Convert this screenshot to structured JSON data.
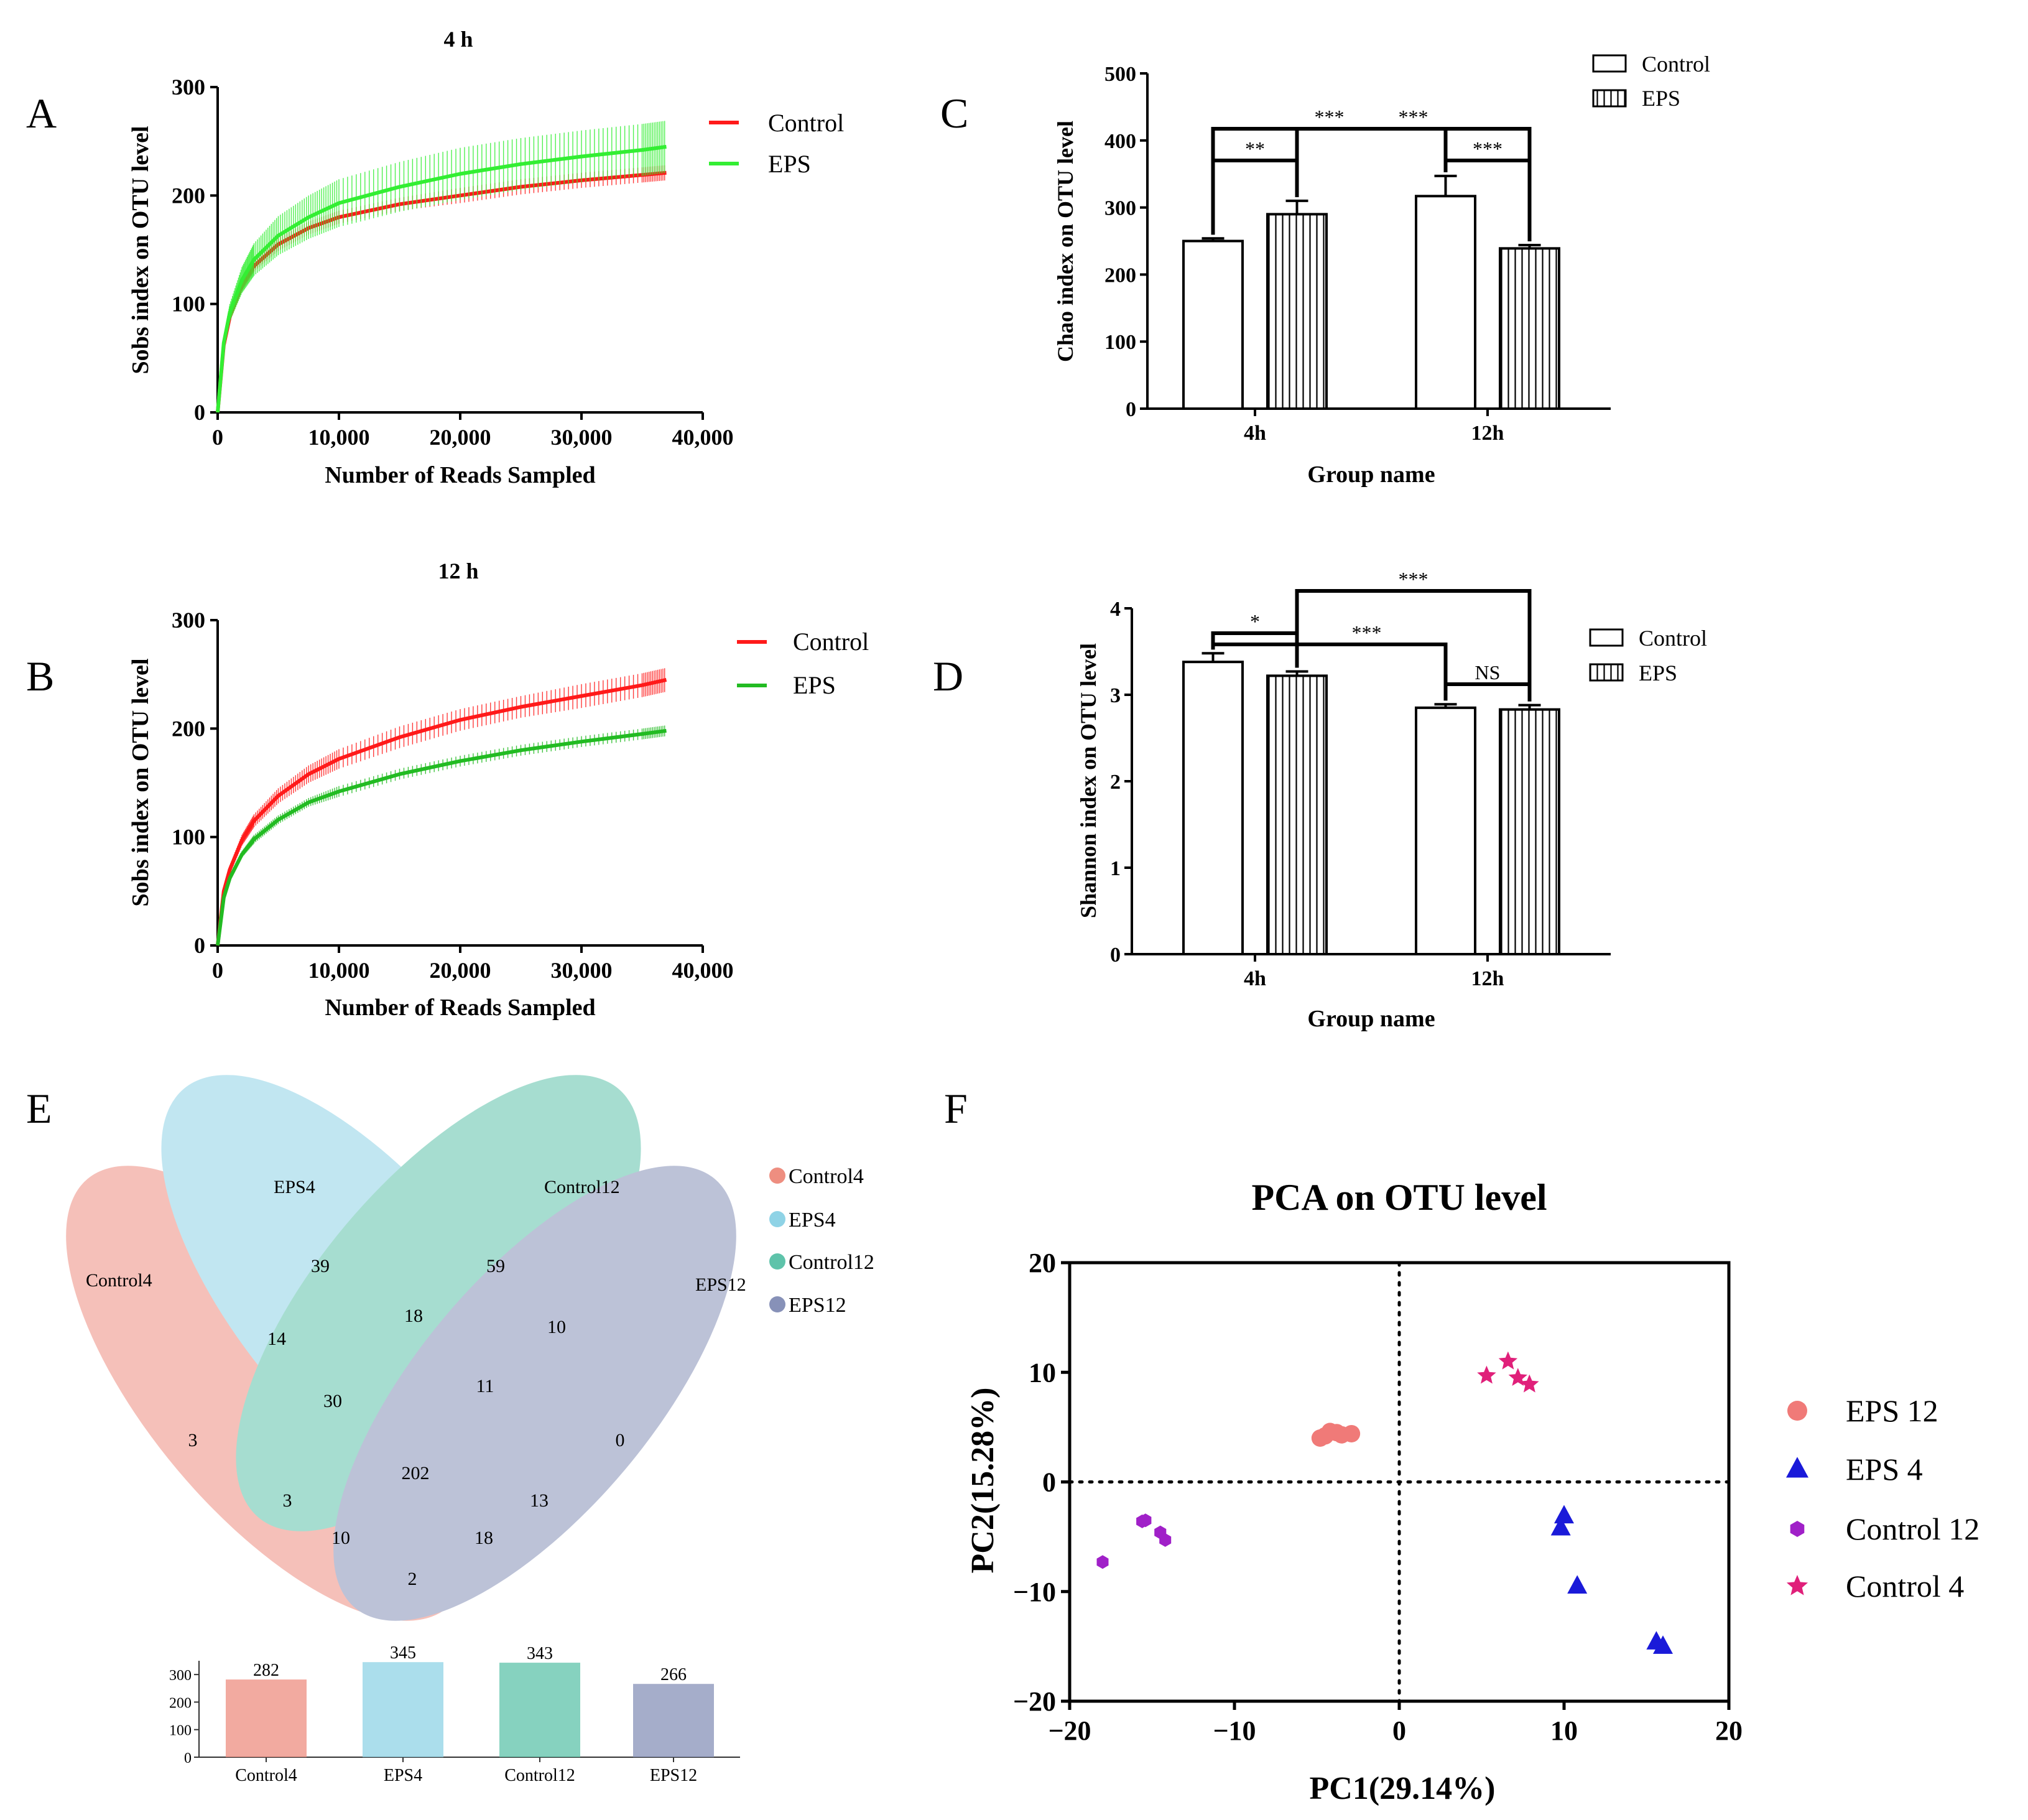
{
  "colors": {
    "red": "#ff1a1a",
    "green_bright": "#33ee33",
    "green": "#22bb22",
    "venn_control4": "#ee8e80",
    "venn_eps4": "#8fd3e6",
    "venn_control12": "#5ec3aa",
    "venn_eps12": "#8791b8",
    "pca_eps12": "#f07a78",
    "pca_eps4": "#1a1ad9",
    "pca_control12": "#a020c8",
    "pca_control4": "#e0207a"
  },
  "panel_labels": {
    "A": "A",
    "B": "B",
    "C": "C",
    "D": "D",
    "E": "E",
    "F": "F"
  },
  "chart_data": [
    {
      "id": "A",
      "type": "line",
      "title": "4 h",
      "xlabel": "Number of Reads Sampled",
      "ylabel": "Sobs index on OTU level",
      "xlim": [
        0,
        40000
      ],
      "ylim": [
        0,
        300
      ],
      "xticks": [
        0,
        10000,
        20000,
        30000,
        40000
      ],
      "xtick_labels": [
        "0",
        "10,000",
        "20,000",
        "30,000",
        "40,000"
      ],
      "yticks": [
        0,
        100,
        200,
        300
      ],
      "ytick_labels": [
        "0",
        "100",
        "200",
        "300"
      ],
      "x": [
        0,
        500,
        1000,
        2000,
        3000,
        5000,
        7500,
        10000,
        15000,
        20000,
        25000,
        30000,
        35000,
        37000
      ],
      "series": [
        {
          "name": "Control",
          "values": [
            0,
            62,
            88,
            117,
            135,
            155,
            170,
            180,
            192,
            200,
            208,
            214,
            219,
            221
          ],
          "err": [
            0,
            3,
            4,
            5,
            5,
            6,
            6,
            6,
            6,
            7,
            7,
            7,
            7,
            7
          ]
        },
        {
          "name": "EPS",
          "values": [
            0,
            64,
            92,
            122,
            141,
            163,
            180,
            193,
            208,
            220,
            229,
            236,
            242,
            245
          ],
          "err": [
            0,
            5,
            8,
            12,
            15,
            18,
            20,
            22,
            23,
            24,
            24,
            24,
            24,
            24
          ]
        }
      ]
    },
    {
      "id": "B",
      "type": "line",
      "title": "12 h",
      "xlabel": "Number of Reads Sampled",
      "ylabel": "Sobs index on OTU level",
      "xlim": [
        0,
        40000
      ],
      "ylim": [
        0,
        300
      ],
      "xticks": [
        0,
        10000,
        20000,
        30000,
        40000
      ],
      "xtick_labels": [
        "0",
        "10,000",
        "20,000",
        "30,000",
        "40,000"
      ],
      "yticks": [
        0,
        100,
        200,
        300
      ],
      "ytick_labels": [
        "0",
        "100",
        "200",
        "300"
      ],
      "x": [
        0,
        500,
        1000,
        2000,
        3000,
        5000,
        7500,
        10000,
        15000,
        20000,
        25000,
        30000,
        35000,
        37000
      ],
      "series": [
        {
          "name": "Control",
          "values": [
            0,
            50,
            70,
            97,
            115,
            138,
            158,
            172,
            192,
            208,
            220,
            230,
            240,
            245
          ],
          "err": [
            0,
            3,
            4,
            5,
            6,
            7,
            8,
            9,
            10,
            10,
            10,
            11,
            11,
            11
          ]
        },
        {
          "name": "EPS",
          "values": [
            0,
            44,
            62,
            84,
            98,
            116,
            132,
            142,
            158,
            170,
            180,
            188,
            195,
            198
          ],
          "err": [
            0,
            2,
            3,
            3,
            4,
            4,
            4,
            5,
            5,
            5,
            5,
            5,
            5,
            5
          ]
        }
      ]
    },
    {
      "id": "C",
      "type": "bar",
      "xlabel": "Group name",
      "ylabel": "Chao index on OTU level",
      "categories": [
        "4h",
        "12h"
      ],
      "ylim": [
        0,
        500
      ],
      "yticks": [
        0,
        100,
        200,
        300,
        400,
        500
      ],
      "ytick_labels": [
        "0",
        "100",
        "200",
        "300",
        "400",
        "500"
      ],
      "series": [
        {
          "name": "Control",
          "values": [
            250,
            317
          ],
          "err": [
            4,
            30
          ]
        },
        {
          "name": "EPS",
          "values": [
            290,
            239
          ],
          "err": [
            20,
            5
          ]
        }
      ],
      "brackets": [
        {
          "a": 0,
          "b": 1,
          "label": "**"
        },
        {
          "a": 0,
          "b": 2,
          "label": "***"
        },
        {
          "a": 1,
          "b": 3,
          "label": "***"
        },
        {
          "a": 2,
          "b": 3,
          "label": "***"
        }
      ]
    },
    {
      "id": "D",
      "type": "bar",
      "xlabel": "Group name",
      "ylabel": "Shannon index on OTU level",
      "categories": [
        "4h",
        "12h"
      ],
      "ylim": [
        0,
        4
      ],
      "yticks": [
        0,
        1,
        2,
        3,
        4
      ],
      "ytick_labels": [
        "0",
        "1",
        "2",
        "3",
        "4"
      ],
      "series": [
        {
          "name": "Control",
          "values": [
            3.38,
            2.85
          ],
          "err": [
            0.1,
            0.04
          ]
        },
        {
          "name": "EPS",
          "values": [
            3.22,
            2.83
          ],
          "err": [
            0.05,
            0.05
          ]
        }
      ],
      "brackets": [
        {
          "a": 0,
          "b": 1,
          "label": "*"
        },
        {
          "a": 0,
          "b": 2,
          "label": "***"
        },
        {
          "a": 1,
          "b": 3,
          "label": "***"
        },
        {
          "a": 2,
          "b": 3,
          "label": "NS"
        }
      ]
    },
    {
      "id": "E",
      "type": "venn",
      "sets": [
        "Control4",
        "EPS4",
        "Control12",
        "EPS12"
      ],
      "legend": [
        "Control4",
        "EPS4",
        "Control12",
        "EPS12"
      ],
      "region_counts": {
        "control4_only": "3",
        "eps4_only": "39",
        "control12_only": "59",
        "eps12_only": "0",
        "c4_e4": "14",
        "e4_c12": "18",
        "c12_e12": "10",
        "c4_e12": "2",
        "c4_c12": "3",
        "e4_e12": "13",
        "c4_e4_c12": "30",
        "e4_c12_e12": "11",
        "c4_e4_e12": "18",
        "c4_c12_e12": "10",
        "all": "202"
      },
      "totals": {
        "categories": [
          "Control4",
          "EPS4",
          "Control12",
          "EPS12"
        ],
        "values": [
          282,
          345,
          343,
          266
        ],
        "value_labels": [
          "282",
          "345",
          "343",
          "266"
        ],
        "ylim": [
          0,
          350
        ],
        "yticks": [
          0,
          100,
          200,
          300
        ],
        "ytick_labels": [
          "0",
          "100",
          "200",
          "300"
        ]
      }
    },
    {
      "id": "F",
      "type": "scatter",
      "title": "PCA on OTU level",
      "xlabel": "PC1(29.14%)",
      "ylabel": "PC2(15.28%)",
      "xlim": [
        -20,
        20
      ],
      "ylim": [
        -20,
        20
      ],
      "xticks": [
        -20,
        -10,
        0,
        10,
        20
      ],
      "xtick_labels": [
        "−20",
        "−10",
        "0",
        "10",
        "20"
      ],
      "yticks": [
        -20,
        -10,
        0,
        10,
        20
      ],
      "ytick_labels": [
        "−20",
        "−10",
        "0",
        "10",
        "20"
      ],
      "series": [
        {
          "name": "EPS 12",
          "marker": "circle",
          "points": [
            [
              -4.8,
              4.0
            ],
            [
              -4.5,
              4.2
            ],
            [
              -4.2,
              4.6
            ],
            [
              -3.8,
              4.5
            ],
            [
              -3.5,
              4.3
            ],
            [
              -2.9,
              4.4
            ]
          ]
        },
        {
          "name": "EPS 4",
          "marker": "triangle",
          "points": [
            [
              10.0,
              -3.1
            ],
            [
              9.8,
              -4.2
            ],
            [
              10.8,
              -9.5
            ],
            [
              15.6,
              -14.6
            ],
            [
              16.0,
              -15.0
            ]
          ]
        },
        {
          "name": "Control 12",
          "marker": "hexagon",
          "points": [
            [
              -18.0,
              -7.3
            ],
            [
              -15.6,
              -3.6
            ],
            [
              -15.4,
              -3.5
            ],
            [
              -14.5,
              -4.6
            ],
            [
              -14.2,
              -5.3
            ]
          ]
        },
        {
          "name": "Control 4",
          "marker": "star",
          "points": [
            [
              5.3,
              9.7
            ],
            [
              6.6,
              11.0
            ],
            [
              7.2,
              9.5
            ],
            [
              7.9,
              8.9
            ]
          ]
        }
      ]
    }
  ]
}
